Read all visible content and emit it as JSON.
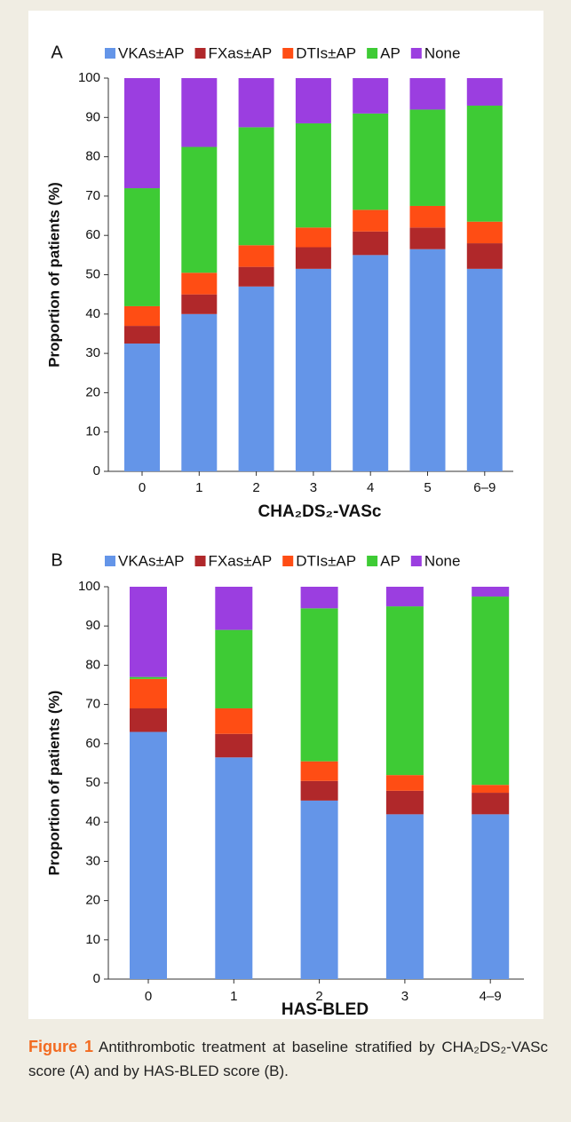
{
  "chart_data": [
    {
      "type": "stacked_bar",
      "panel_label": "A",
      "x_label": "CHA₂DS₂-VASc",
      "y_label": "Proportion of patients (%)",
      "categories": [
        "0",
        "1",
        "2",
        "3",
        "4",
        "5",
        "6–9"
      ],
      "series": [
        {
          "name": "VKAs±AP",
          "color": "#6495e8",
          "values": [
            32.5,
            40,
            47,
            51.5,
            55,
            56.5,
            51.5
          ]
        },
        {
          "name": "FXas±AP",
          "color": "#b0282a",
          "values": [
            4.5,
            5,
            5,
            5.5,
            6,
            5.5,
            6.5
          ]
        },
        {
          "name": "DTIs±AP",
          "color": "#ff4d14",
          "values": [
            5,
            5.5,
            5.5,
            5,
            5.5,
            5.5,
            5.5
          ]
        },
        {
          "name": "AP",
          "color": "#3ecb35",
          "values": [
            30,
            32,
            30,
            26.5,
            24.5,
            24.5,
            29.5
          ]
        },
        {
          "name": "None",
          "color": "#9b3ee0",
          "values": [
            28,
            17.5,
            12.5,
            11.5,
            9,
            8,
            7
          ]
        }
      ],
      "ylim": [
        0,
        100
      ],
      "yticks": [
        0,
        10,
        20,
        30,
        40,
        50,
        60,
        70,
        80,
        90,
        100
      ],
      "legend": "top",
      "grid": false
    },
    {
      "type": "stacked_bar",
      "panel_label": "B",
      "x_label": "HAS-BLED",
      "y_label": "Proportion of patients (%)",
      "categories": [
        "0",
        "1",
        "2",
        "3",
        "4–9"
      ],
      "series": [
        {
          "name": "VKAs±AP",
          "color": "#6495e8",
          "values": [
            63,
            56.5,
            45.5,
            42,
            42
          ]
        },
        {
          "name": "FXas±AP",
          "color": "#b0282a",
          "values": [
            6,
            6,
            5,
            6,
            5.5
          ]
        },
        {
          "name": "DTIs±AP",
          "color": "#ff4d14",
          "values": [
            7.5,
            6.5,
            5,
            4,
            2
          ]
        },
        {
          "name": "AP",
          "color": "#3ecb35",
          "values": [
            0.5,
            20,
            39,
            43,
            48
          ]
        },
        {
          "name": "None",
          "color": "#9b3ee0",
          "values": [
            23,
            11,
            5.5,
            5,
            2.5
          ]
        }
      ],
      "ylim": [
        0,
        100
      ],
      "yticks": [
        0,
        10,
        20,
        30,
        40,
        50,
        60,
        70,
        80,
        90,
        100
      ],
      "legend": "top",
      "grid": false
    }
  ],
  "caption": {
    "label": "Figure 1",
    "text": "Antithrombotic treatment at baseline stratified by CHA₂DS₂-VASc score (A) and by HAS-BLED score (B)."
  }
}
